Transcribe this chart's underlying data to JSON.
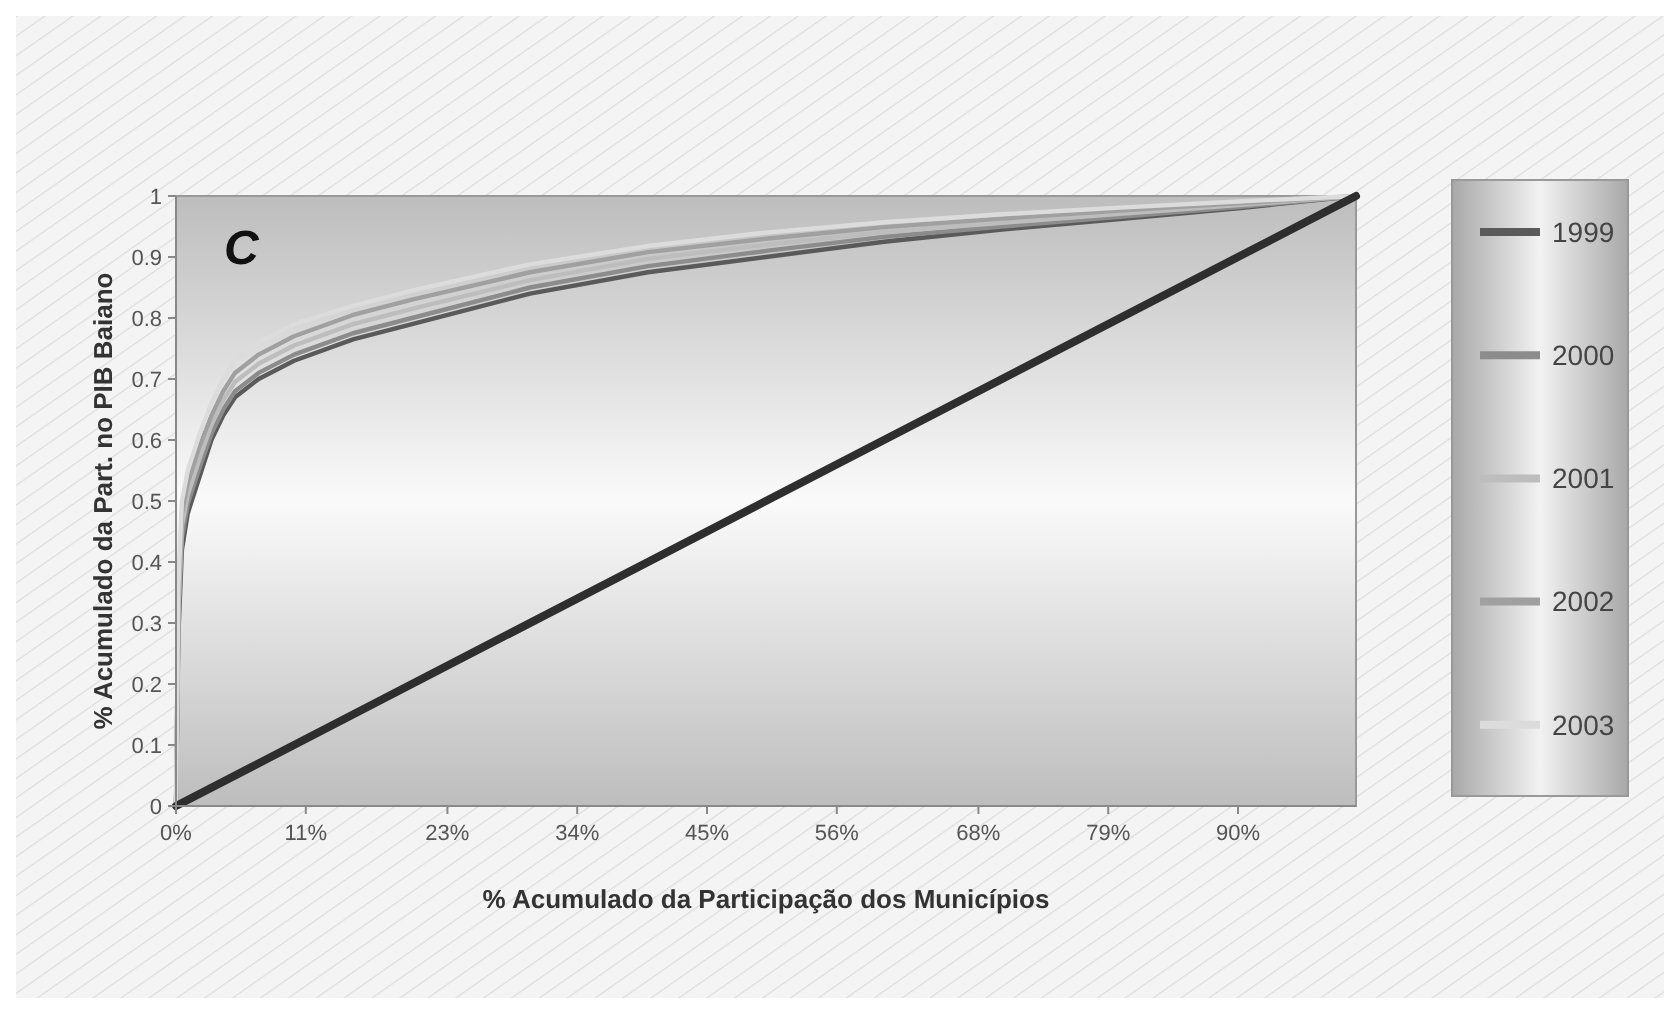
{
  "chart_data": {
    "type": "line",
    "xlabel": "% Acumulado da Participação dos Municípios",
    "ylabel": "% Acumulado da Part. no PIB Baiano",
    "annotations": [
      "C"
    ],
    "x": [
      0,
      0.2,
      0.5,
      1,
      2,
      3,
      4,
      5,
      7,
      10,
      15,
      20,
      30,
      40,
      50,
      60,
      70,
      80,
      90,
      100
    ],
    "series": [
      {
        "name": "1999",
        "color": "#5a5a5a",
        "values": [
          0,
          0.28,
          0.42,
          0.48,
          0.54,
          0.6,
          0.64,
          0.67,
          0.7,
          0.73,
          0.765,
          0.79,
          0.84,
          0.875,
          0.9,
          0.925,
          0.945,
          0.962,
          0.98,
          1
        ]
      },
      {
        "name": "2000",
        "color": "#8c8c8c",
        "values": [
          0,
          0.3,
          0.44,
          0.495,
          0.555,
          0.61,
          0.65,
          0.68,
          0.71,
          0.74,
          0.775,
          0.8,
          0.85,
          0.885,
          0.91,
          0.933,
          0.95,
          0.966,
          0.982,
          1
        ]
      },
      {
        "name": "2001",
        "color": "#bdbdbd",
        "values": [
          0,
          0.32,
          0.46,
          0.51,
          0.57,
          0.625,
          0.665,
          0.695,
          0.725,
          0.755,
          0.79,
          0.815,
          0.862,
          0.897,
          0.92,
          0.941,
          0.956,
          0.971,
          0.985,
          1
        ]
      },
      {
        "name": "2002",
        "color": "#a0a0a0",
        "values": [
          0,
          0.34,
          0.48,
          0.53,
          0.59,
          0.64,
          0.68,
          0.71,
          0.74,
          0.77,
          0.805,
          0.83,
          0.875,
          0.908,
          0.93,
          0.949,
          0.963,
          0.976,
          0.988,
          1
        ]
      },
      {
        "name": "2003",
        "color": "#dcdcdc",
        "values": [
          0,
          0.36,
          0.5,
          0.55,
          0.61,
          0.66,
          0.7,
          0.73,
          0.76,
          0.79,
          0.82,
          0.845,
          0.888,
          0.918,
          0.94,
          0.957,
          0.97,
          0.981,
          0.991,
          1
        ]
      },
      {
        "color": "#2e2e2e",
        "x": [
          0,
          100
        ],
        "values": [
          0,
          1
        ]
      }
    ],
    "xlim": [
      0,
      100
    ],
    "xticks": [
      {
        "value": 0,
        "label": "0%"
      },
      {
        "value": 11,
        "label": "11%"
      },
      {
        "value": 23,
        "label": "23%"
      },
      {
        "value": 34,
        "label": "34%"
      },
      {
        "value": 45,
        "label": "45%"
      },
      {
        "value": 56,
        "label": "56%"
      },
      {
        "value": 68,
        "label": "68%"
      },
      {
        "value": 79,
        "label": "79%"
      },
      {
        "value": 90,
        "label": "90%"
      }
    ],
    "ylim": [
      0,
      1
    ],
    "yticks": [
      0,
      0.1,
      0.2,
      0.3,
      0.4,
      0.5,
      0.6,
      0.7,
      0.8,
      0.9,
      1
    ],
    "legend": "right"
  }
}
